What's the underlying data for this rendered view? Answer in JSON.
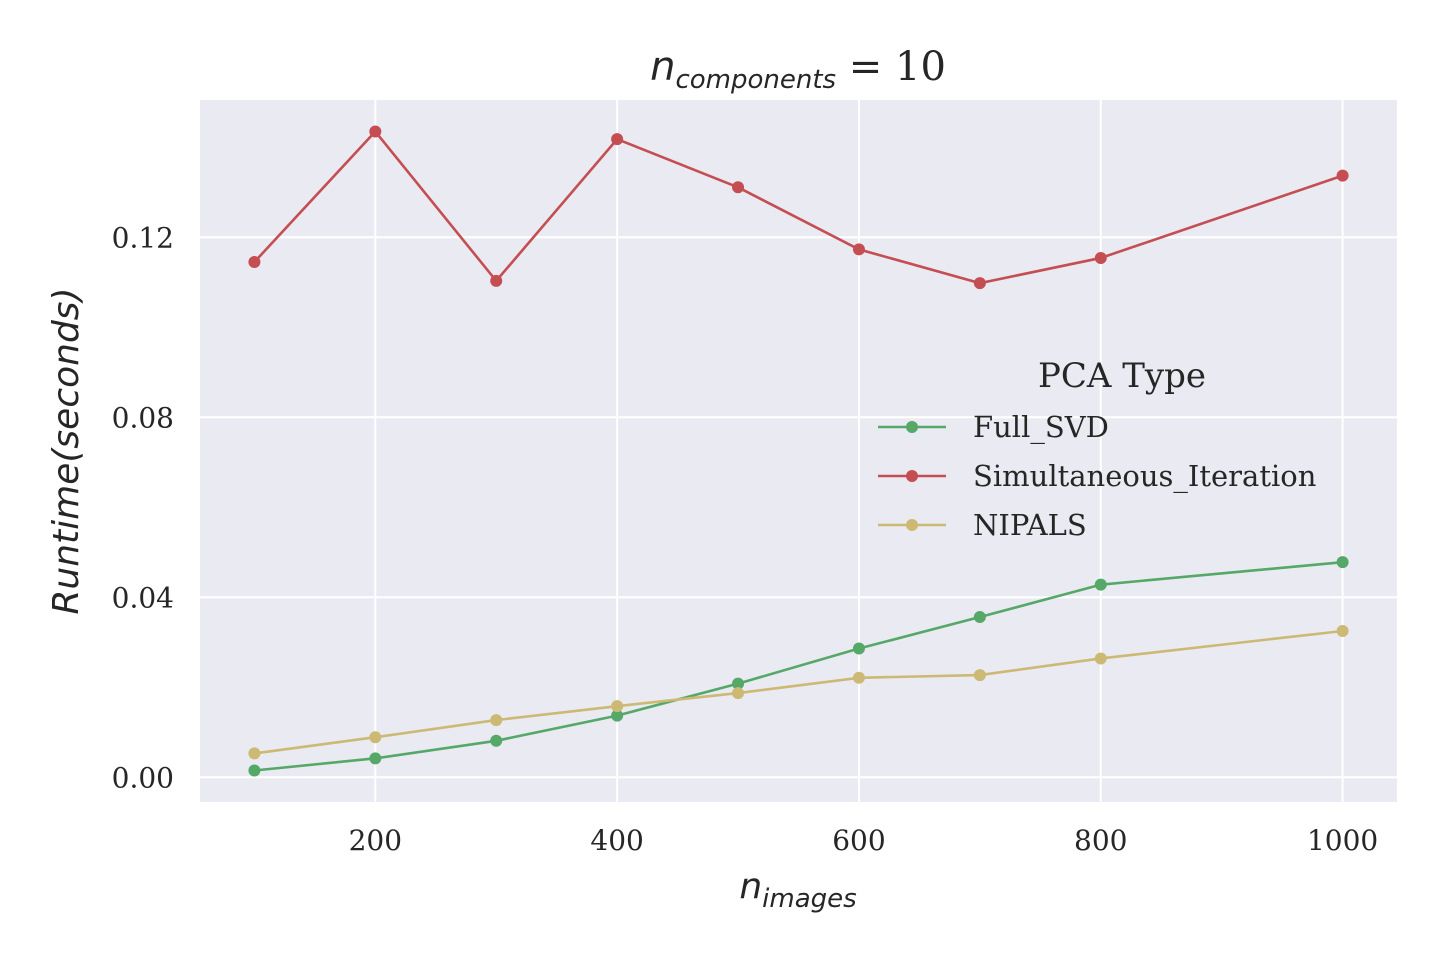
{
  "chart_data": {
    "type": "line",
    "title": {
      "main": "n",
      "subscript": "components",
      "suffix": " = 10"
    },
    "xlabel": {
      "main": "n",
      "subscript": "images"
    },
    "ylabel": "Runtime(seconds)",
    "x": [
      100,
      200,
      300,
      400,
      500,
      600,
      700,
      800,
      1000
    ],
    "xlim": [
      55,
      1045
    ],
    "ylim": [
      -0.0055,
      0.1505
    ],
    "xticks": [
      200,
      400,
      600,
      800,
      1000
    ],
    "xtick_labels": [
      "200",
      "400",
      "600",
      "800",
      "1000"
    ],
    "yticks": [
      0.0,
      0.04,
      0.08,
      0.12
    ],
    "ytick_labels": [
      "0.00",
      "0.04",
      "0.08",
      "0.12"
    ],
    "grid": true,
    "legend_position": "center-right",
    "legend_title": "PCA Type",
    "series": [
      {
        "name": "Full_SVD",
        "color": "#55a868",
        "values": [
          0.0015,
          0.0042,
          0.0081,
          0.0137,
          0.0208,
          0.0286,
          0.0356,
          0.0428,
          0.0478
        ]
      },
      {
        "name": "Simultaneous_Iteration",
        "color": "#c44e52",
        "values": [
          0.1145,
          0.1435,
          0.1103,
          0.1418,
          0.1311,
          0.1173,
          0.1098,
          0.1154,
          0.1337
        ]
      },
      {
        "name": "NIPALS",
        "color": "#ccb974",
        "values": [
          0.0053,
          0.0089,
          0.0127,
          0.0158,
          0.0187,
          0.0221,
          0.0227,
          0.0264,
          0.0325
        ]
      }
    ],
    "background_color": "#eaeaf2",
    "grid_color": "#ffffff"
  }
}
